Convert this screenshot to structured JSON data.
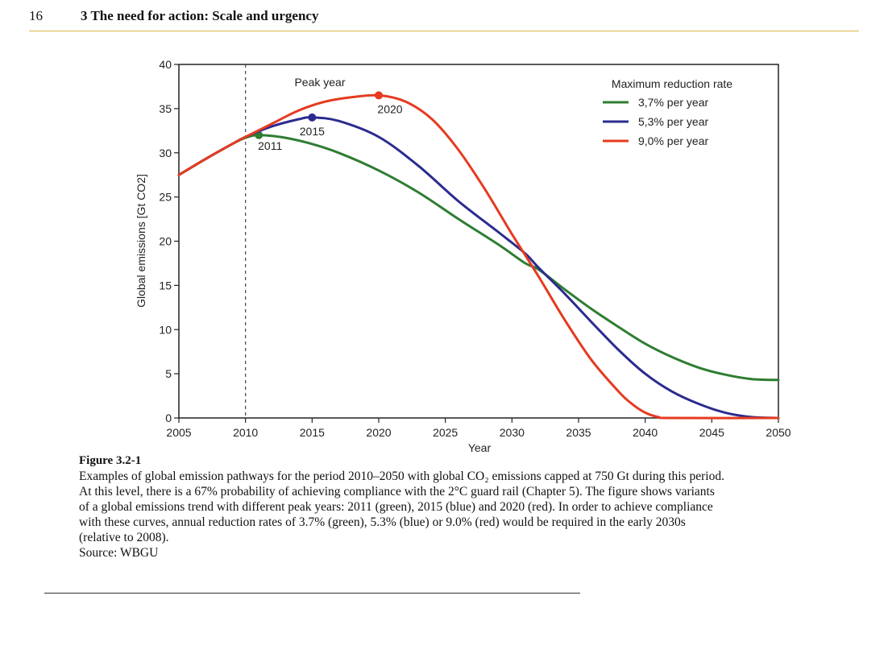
{
  "header": {
    "page_number": "16",
    "chapter_title": "3 The need for action: Scale and urgency"
  },
  "chart_data": {
    "type": "line",
    "xlabel": "Year",
    "ylabel": "Global emissions [Gt CO2]",
    "xlim": [
      2005,
      2050
    ],
    "ylim": [
      0,
      40
    ],
    "x_ticks": [
      "2005",
      "2010",
      "2015",
      "2020",
      "2025",
      "2030",
      "2035",
      "2040",
      "2045",
      "2050"
    ],
    "y_ticks": [
      "0",
      "5",
      "10",
      "15",
      "20",
      "25",
      "30",
      "35",
      "40"
    ],
    "legend_title": "Maximum reduction rate",
    "legend_position": "top-right",
    "reference_line": {
      "x": 2010,
      "style": "dashed"
    },
    "peak_label": "Peak year",
    "series": [
      {
        "name": "3,7% per year",
        "color": "#2e7d32",
        "peak": {
          "x": 2011,
          "y": 32,
          "label": "2011"
        },
        "points": [
          [
            2005,
            27.5
          ],
          [
            2007,
            29.3
          ],
          [
            2009,
            31.0
          ],
          [
            2010,
            31.7
          ],
          [
            2011,
            32.0
          ],
          [
            2013,
            31.7
          ],
          [
            2015,
            31.0
          ],
          [
            2017,
            30.0
          ],
          [
            2020,
            28.0
          ],
          [
            2023,
            25.5
          ],
          [
            2026,
            22.5
          ],
          [
            2029,
            19.6
          ],
          [
            2031,
            17.5
          ],
          [
            2032,
            16.8
          ],
          [
            2034,
            14.5
          ],
          [
            2036,
            12.3
          ],
          [
            2038,
            10.3
          ],
          [
            2040,
            8.4
          ],
          [
            2042,
            6.9
          ],
          [
            2044,
            5.7
          ],
          [
            2046,
            4.9
          ],
          [
            2048,
            4.4
          ],
          [
            2050,
            4.3
          ]
        ]
      },
      {
        "name": "5,3% per year",
        "color": "#2b2b8f",
        "peak": {
          "x": 2015,
          "y": 34,
          "label": "2015"
        },
        "points": [
          [
            2005,
            27.5
          ],
          [
            2007,
            29.3
          ],
          [
            2009,
            31.0
          ],
          [
            2010,
            31.8
          ],
          [
            2012,
            33.0
          ],
          [
            2014,
            33.8
          ],
          [
            2015,
            34.0
          ],
          [
            2017,
            33.6
          ],
          [
            2020,
            31.8
          ],
          [
            2023,
            28.5
          ],
          [
            2026,
            24.5
          ],
          [
            2029,
            21.0
          ],
          [
            2031,
            18.6
          ],
          [
            2032,
            17.0
          ],
          [
            2034,
            14.0
          ],
          [
            2036,
            10.8
          ],
          [
            2038,
            7.7
          ],
          [
            2040,
            5.0
          ],
          [
            2042,
            3.0
          ],
          [
            2044,
            1.6
          ],
          [
            2046,
            0.6
          ],
          [
            2048,
            0.1
          ],
          [
            2050,
            0.0
          ]
        ]
      },
      {
        "name": "9,0% per year",
        "color": "#e53b1f",
        "peak": {
          "x": 2020,
          "y": 36.5,
          "label": "2020"
        },
        "points": [
          [
            2005,
            27.5
          ],
          [
            2007,
            29.3
          ],
          [
            2009,
            31.0
          ],
          [
            2010,
            31.8
          ],
          [
            2012,
            33.3
          ],
          [
            2014,
            34.8
          ],
          [
            2016,
            35.8
          ],
          [
            2018,
            36.3
          ],
          [
            2020,
            36.5
          ],
          [
            2022,
            35.8
          ],
          [
            2024,
            33.8
          ],
          [
            2026,
            30.3
          ],
          [
            2028,
            25.8
          ],
          [
            2030,
            20.8
          ],
          [
            2032,
            16.0
          ],
          [
            2034,
            11.0
          ],
          [
            2036,
            6.5
          ],
          [
            2038,
            3.0
          ],
          [
            2039,
            1.6
          ],
          [
            2040,
            0.6
          ],
          [
            2041,
            0.1
          ],
          [
            2042,
            0.0
          ],
          [
            2050,
            0.0
          ]
        ]
      }
    ]
  },
  "caption": {
    "heading": "Figure 3.2-1",
    "lines": [
      "Examples of global emission pathways for the period 2010–2050 with global CO₂ emissions capped at 750 Gt during this period.",
      "At this level, there is a 67% probability of achieving compliance with the 2°C guard rail (Chapter 5). The figure shows variants",
      "of a global emissions trend with different peak years: 2011 (green), 2015 (blue) and 2020 (red). In order to achieve compliance",
      "with these curves, annual reduction rates of 3.7% (green), 5.3% (blue) or 9.0% (red) would be required in the early 2030s",
      "(relative to 2008)."
    ],
    "source": "Source: WBGU"
  }
}
